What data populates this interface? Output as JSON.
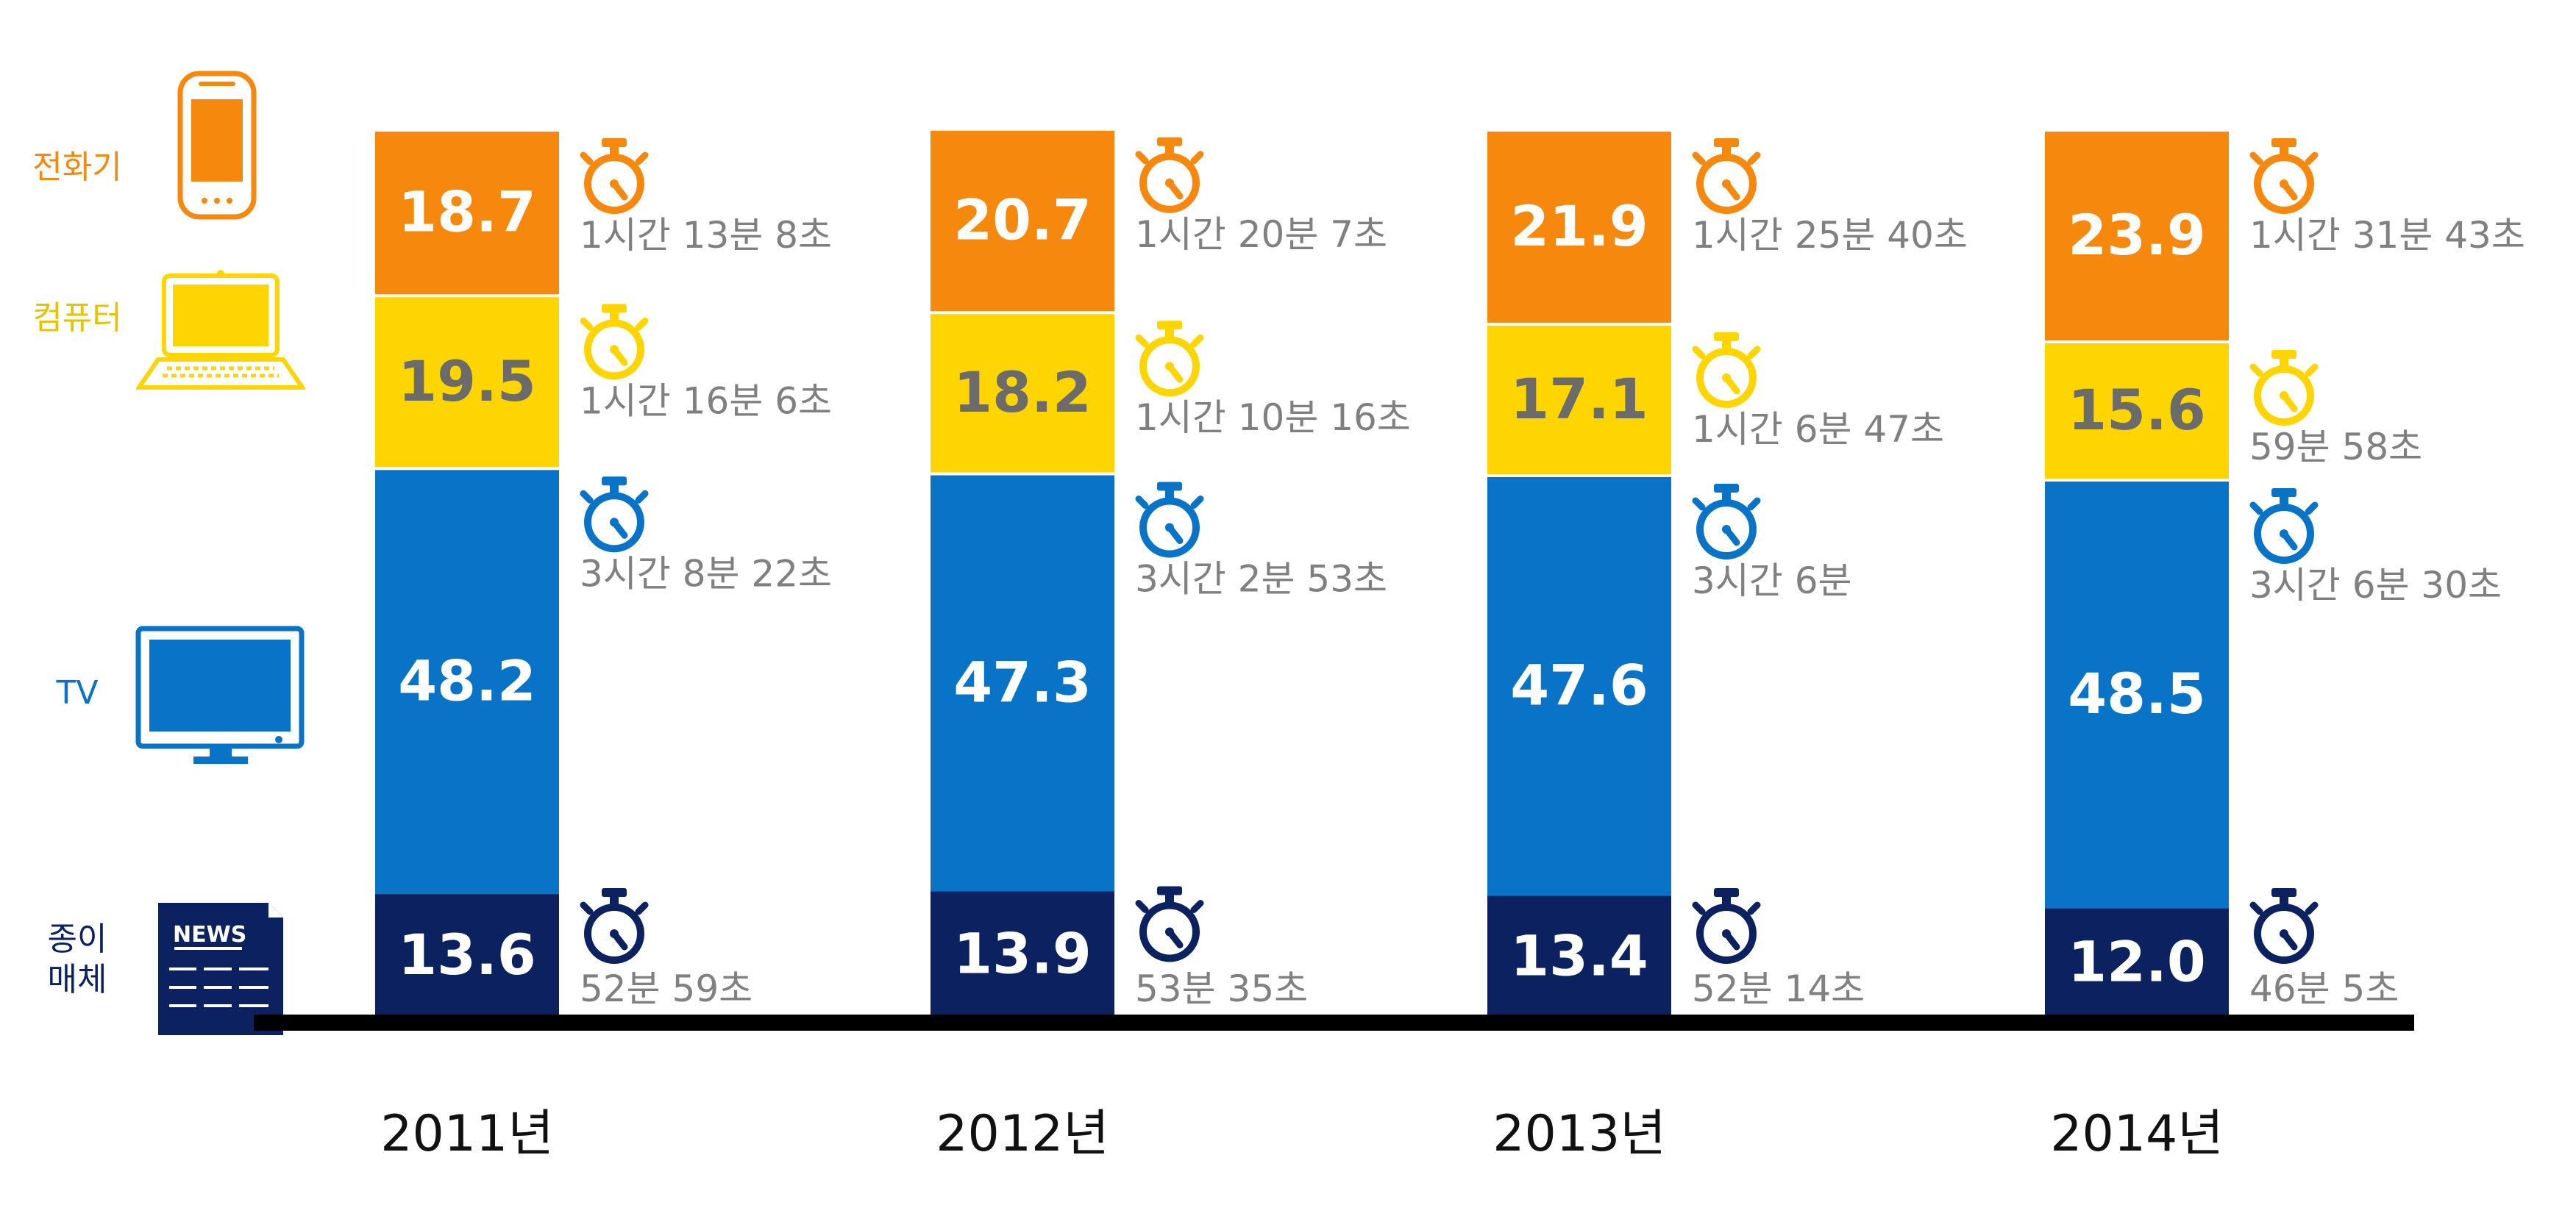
{
  "chart_data": {
    "type": "bar",
    "stacked": true,
    "title": "",
    "xlabel": "",
    "ylabel": "",
    "categories": [
      "2011년",
      "2012년",
      "2013년",
      "2014년"
    ],
    "series": [
      {
        "name": "종이\n매체",
        "color": "#0b2160",
        "values": [
          13.6,
          13.9,
          13.4,
          12.0
        ],
        "durations": [
          "52분 59초",
          "53분 35초",
          "52분 14초",
          "46분 5초"
        ]
      },
      {
        "name": "TV",
        "color": "#0873c7",
        "values": [
          48.2,
          47.3,
          47.6,
          48.5
        ],
        "durations": [
          "3시간 8분 22초",
          "3시간 2분 53초",
          "3시간 6분",
          "3시간 6분 30초"
        ]
      },
      {
        "name": "컴퓨터",
        "color": "#ffd500",
        "values": [
          19.5,
          18.2,
          17.1,
          15.6
        ],
        "durations": [
          "1시간 16분 6초",
          "1시간 10분 16초",
          "1시간 6분 47초",
          "59분 58초"
        ]
      },
      {
        "name": "전화기",
        "color": "#f7880e",
        "values": [
          18.7,
          20.7,
          21.9,
          23.9
        ],
        "durations": [
          "1시간 13분 8초",
          "1시간 20분 7초",
          "1시간 25분 40초",
          "1시간 31분 43초"
        ]
      }
    ],
    "legend_position": "left",
    "grid": false,
    "icons": [
      "newspaper-icon",
      "tv-icon",
      "laptop-icon",
      "smartphone-icon",
      "stopwatch-icon"
    ],
    "colors": {
      "paper": "#0b2160",
      "tv": "#0873c7",
      "computer": "#ffd500",
      "phone": "#f7880e",
      "value_text_light": "#ffffff",
      "value_text_on_yellow": "#6b6b6b",
      "duration_text": "#808080",
      "baseline": "#000000",
      "year_text": "#111111"
    }
  }
}
